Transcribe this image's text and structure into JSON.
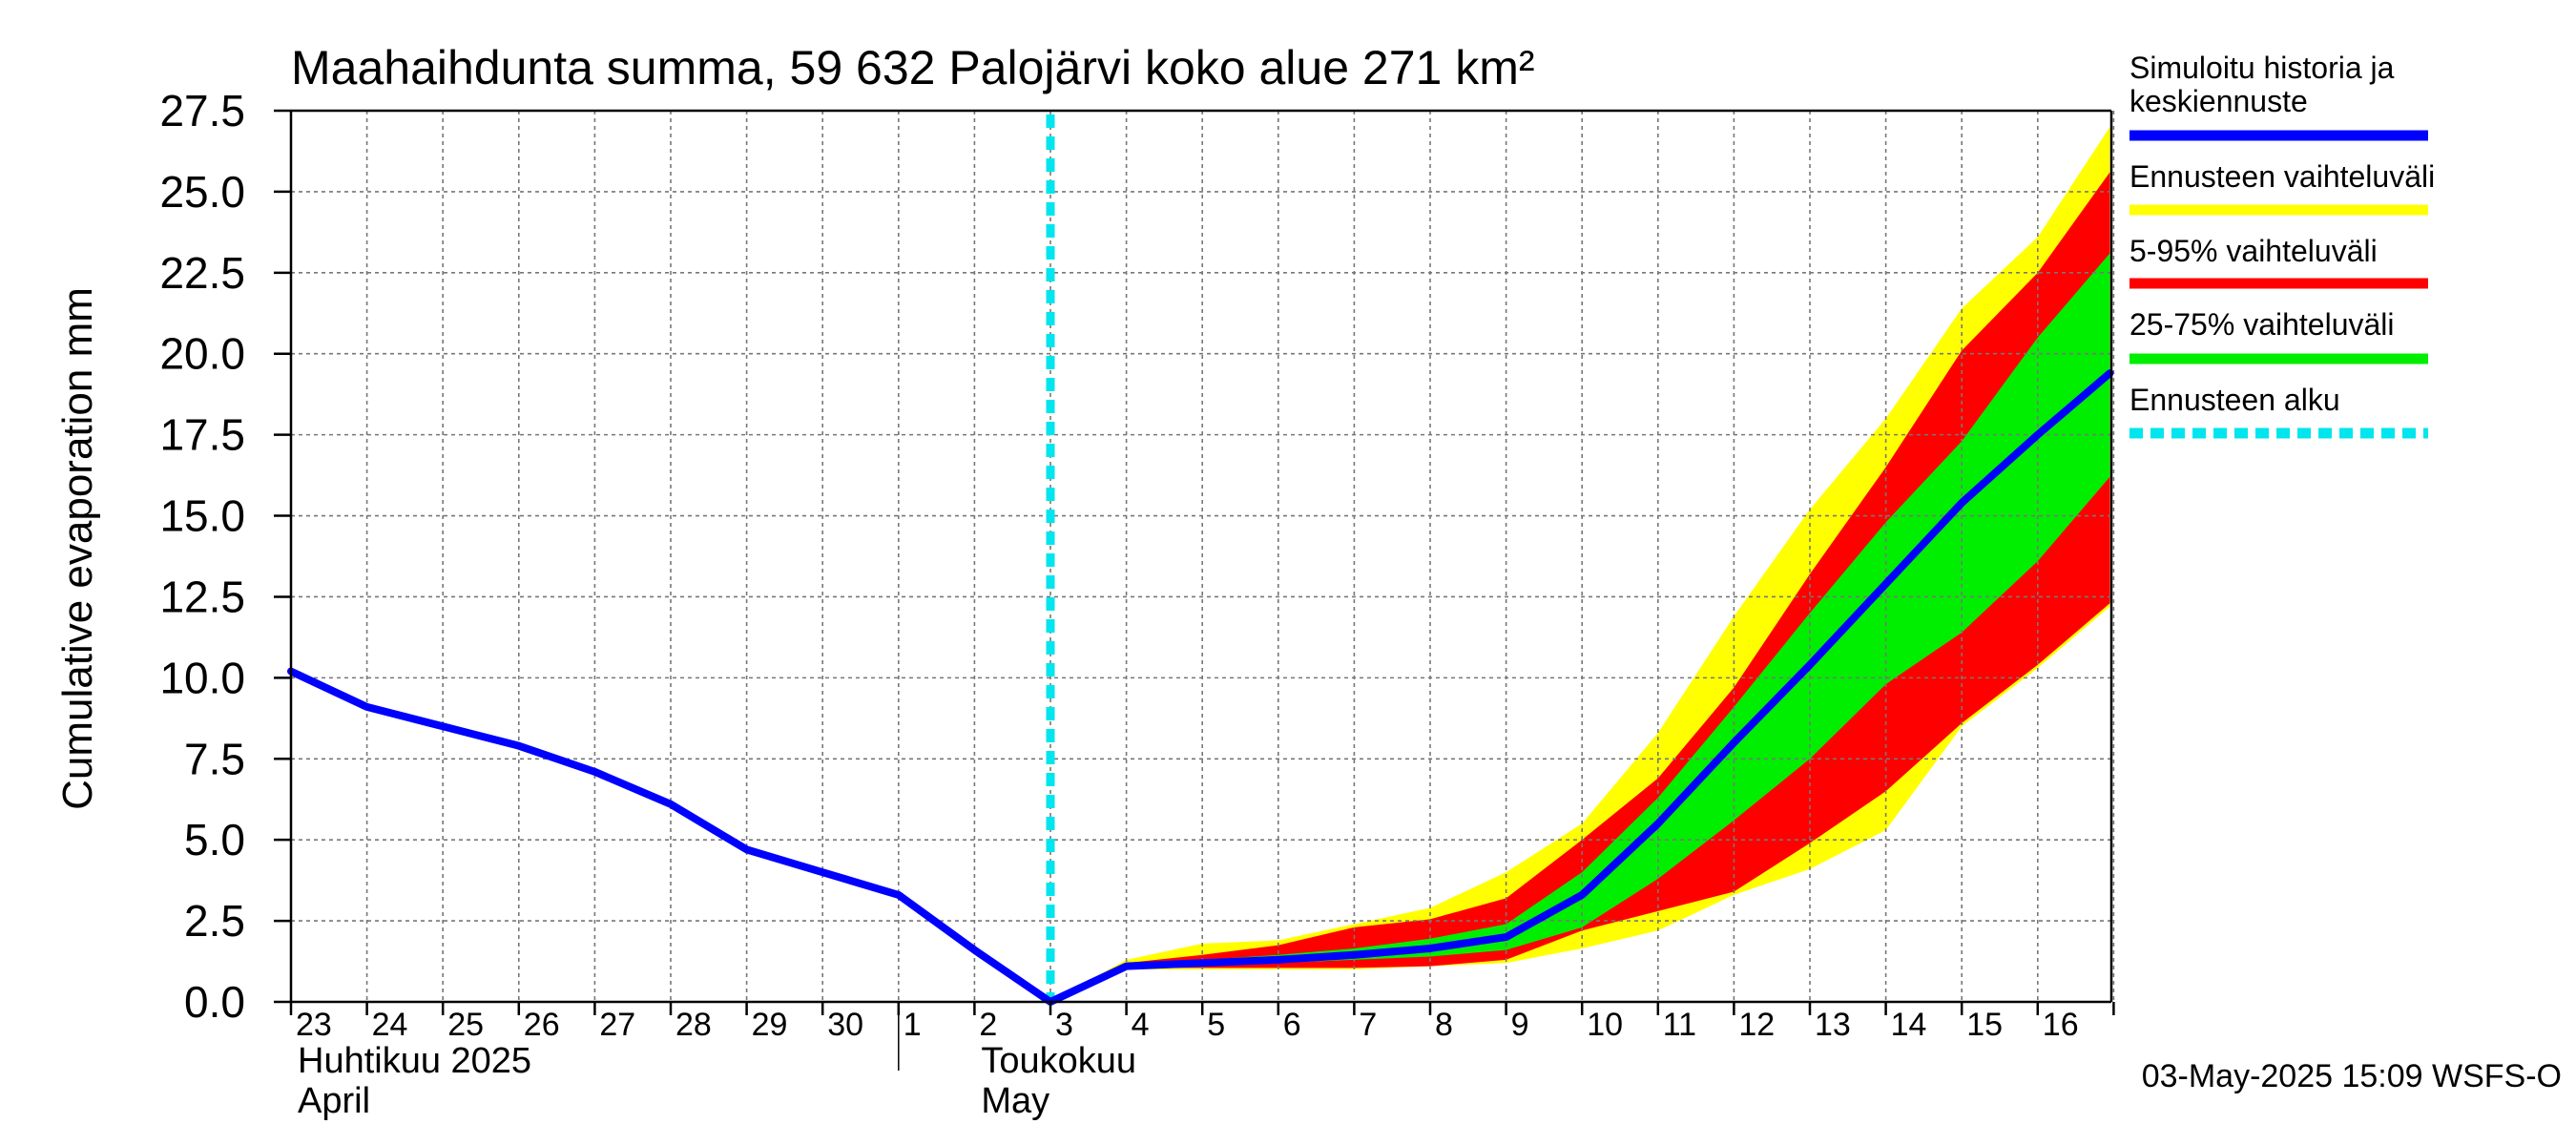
{
  "chart_data": {
    "type": "area",
    "title": "Maahaihdunta summa, 59 632 Palojärvi koko alue 271 km²",
    "ylabel": "Cumulative evaporation   mm",
    "ylim": [
      0,
      27.5
    ],
    "yticks": [
      0,
      2.5,
      5,
      7.5,
      10,
      12.5,
      15,
      17.5,
      20,
      22.5,
      25,
      27.5
    ],
    "ytick_labels": [
      "0.0",
      "2.5",
      "5.0",
      "7.5",
      "10.0",
      "12.5",
      "15.0",
      "17.5",
      "20.0",
      "22.5",
      "25.0",
      "27.5"
    ],
    "x_days": [
      0,
      1,
      2,
      3,
      4,
      5,
      6,
      7,
      8,
      9,
      10,
      11,
      12,
      13,
      14,
      15,
      16,
      17,
      18,
      19,
      20,
      21,
      22,
      23,
      24
    ],
    "xtick_labels": [
      "23",
      "24",
      "25",
      "26",
      "27",
      "28",
      "29",
      "30",
      "1",
      "2",
      "3",
      "4",
      "5",
      "6",
      "7",
      "8",
      "9",
      "10",
      "11",
      "12",
      "13",
      "14",
      "15",
      "16"
    ],
    "month_labels": [
      {
        "line1": "Huhtikuu  2025",
        "line2": "April",
        "day": 0
      },
      {
        "line1": "Toukokuu",
        "line2": "May",
        "day": 9
      }
    ],
    "month_divider_day": 8,
    "forecast_start_day": 10,
    "x_end_day": 23.95,
    "series": [
      {
        "name": "Simuloitu historia ja keskiennuste",
        "x": [
          0,
          1,
          2,
          3,
          4,
          5,
          6,
          7,
          8,
          9,
          10,
          11,
          12,
          13,
          14,
          15,
          16,
          17,
          18,
          19,
          20,
          21,
          22,
          23,
          23.95
        ],
        "values": [
          10.2,
          9.1,
          8.5,
          7.9,
          7.1,
          6.1,
          4.7,
          4.0,
          3.3,
          1.6,
          0.0,
          1.1,
          1.2,
          1.3,
          1.45,
          1.65,
          2.0,
          3.3,
          5.5,
          8.0,
          10.4,
          12.9,
          15.4,
          17.5,
          19.4
        ]
      }
    ],
    "bands": [
      {
        "name": "Ennusteen vaihteluväli",
        "color": "#ffff00",
        "x": [
          10,
          11,
          12,
          13,
          14,
          15,
          16,
          17,
          18,
          19,
          20,
          21,
          22,
          23,
          23.95
        ],
        "lower": [
          0.0,
          1.0,
          1.0,
          1.0,
          1.0,
          1.1,
          1.2,
          1.65,
          2.2,
          3.3,
          4.1,
          5.3,
          8.5,
          10.3,
          12.2
        ],
        "upper": [
          0.0,
          1.3,
          1.8,
          1.9,
          2.4,
          2.9,
          4.0,
          5.5,
          8.3,
          11.9,
          15.2,
          18.0,
          21.4,
          23.6,
          27.0
        ]
      },
      {
        "name": "5-95% vaihteluväli",
        "color": "#ff0000",
        "x": [
          10,
          11,
          12,
          13,
          14,
          15,
          16,
          17,
          18,
          19,
          20,
          21,
          22,
          23,
          23.95
        ],
        "lower": [
          0.0,
          1.05,
          1.05,
          1.05,
          1.05,
          1.1,
          1.3,
          2.2,
          2.8,
          3.4,
          4.9,
          6.5,
          8.6,
          10.4,
          12.3
        ],
        "upper": [
          0.0,
          1.2,
          1.45,
          1.75,
          2.3,
          2.55,
          3.2,
          5.0,
          6.9,
          9.7,
          13.2,
          16.5,
          20.1,
          22.5,
          25.6
        ]
      },
      {
        "name": "25-75% vaihteluväli",
        "color": "#00ee00",
        "x": [
          10,
          11,
          12,
          13,
          14,
          15,
          16,
          17,
          18,
          19,
          20,
          21,
          22,
          23,
          23.95
        ],
        "lower": [
          0.0,
          1.1,
          1.15,
          1.2,
          1.3,
          1.4,
          1.6,
          2.3,
          3.8,
          5.6,
          7.5,
          9.8,
          11.4,
          13.6,
          16.2
        ],
        "upper": [
          0.0,
          1.15,
          1.3,
          1.45,
          1.65,
          1.95,
          2.4,
          4.0,
          6.3,
          9.1,
          12.0,
          14.8,
          17.3,
          20.5,
          23.1
        ]
      }
    ],
    "legend": [
      {
        "label_lines": [
          "Simuloitu historia ja",
          "keskiennuste"
        ],
        "color": "#0000ff",
        "style": "solid"
      },
      {
        "label_lines": [
          "Ennusteen vaihteluväli"
        ],
        "color": "#ffff00",
        "style": "solid"
      },
      {
        "label_lines": [
          "5-95% vaihteluväli"
        ],
        "color": "#ff0000",
        "style": "solid"
      },
      {
        "label_lines": [
          "25-75% vaihteluväli"
        ],
        "color": "#00ee00",
        "style": "solid"
      },
      {
        "label_lines": [
          "Ennusteen alku"
        ],
        "color": "#00e5ee",
        "style": "dashed"
      }
    ],
    "legend_position": "right",
    "grid": true,
    "footer": "03-May-2025 15:09 WSFS-O"
  }
}
